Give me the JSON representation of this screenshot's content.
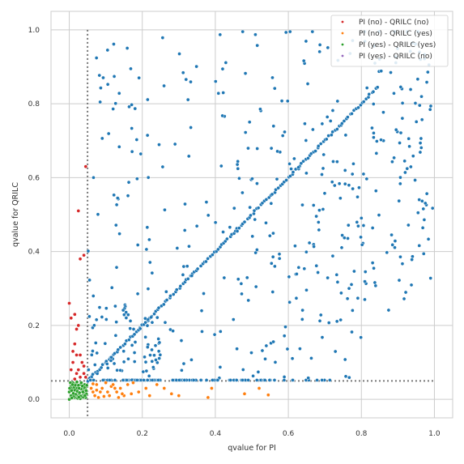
{
  "chart_data": {
    "type": "scatter",
    "xlabel": "qvalue for PI",
    "ylabel": "qvalue for QRILC",
    "xlim": [
      -0.05,
      1.05
    ],
    "ylim": [
      -0.05,
      1.05
    ],
    "grid": true,
    "legend_position": "top-right",
    "x_ticks": [
      "0.0",
      "0.2",
      "0.4",
      "0.6",
      "0.8",
      "1.0"
    ],
    "y_ticks": [
      "0.0",
      "0.2",
      "0.4",
      "0.6",
      "0.8",
      "1.0"
    ],
    "threshold": 0.05,
    "series": [
      {
        "name": "PI (no)  - QRILC (no)",
        "color": "#d62728",
        "points": [
          [
            0.0,
            0.26
          ],
          [
            0.005,
            0.22
          ],
          [
            0.015,
            0.23
          ],
          [
            0.02,
            0.19
          ],
          [
            0.025,
            0.2
          ],
          [
            0.03,
            0.38
          ],
          [
            0.025,
            0.51
          ],
          [
            0.045,
            0.63
          ],
          [
            0.04,
            0.39
          ],
          [
            0.015,
            0.15
          ],
          [
            0.02,
            0.12
          ],
          [
            0.03,
            0.12
          ],
          [
            0.01,
            0.1
          ],
          [
            0.035,
            0.1
          ],
          [
            0.025,
            0.08
          ],
          [
            0.04,
            0.07
          ],
          [
            0.02,
            0.07
          ],
          [
            0.005,
            0.08
          ],
          [
            0.03,
            0.06
          ],
          [
            0.045,
            0.06
          ],
          [
            0.015,
            0.055
          ],
          [
            0.04,
            0.09
          ],
          [
            0.01,
            0.13
          ]
        ]
      },
      {
        "name": "PI (no)  - QRILC (yes)",
        "color": "#ff7f0e",
        "points": [
          [
            0.06,
            0.03
          ],
          [
            0.065,
            0.02
          ],
          [
            0.07,
            0.01
          ],
          [
            0.075,
            0.04
          ],
          [
            0.08,
            0.005
          ],
          [
            0.09,
            0.03
          ],
          [
            0.1,
            0.045
          ],
          [
            0.105,
            0.02
          ],
          [
            0.11,
            0.01
          ],
          [
            0.115,
            0.035
          ],
          [
            0.12,
            0.04
          ],
          [
            0.13,
            0.02
          ],
          [
            0.135,
            0.005
          ],
          [
            0.14,
            0.03
          ],
          [
            0.15,
            0.01
          ],
          [
            0.16,
            0.04
          ],
          [
            0.17,
            0.015
          ],
          [
            0.175,
            0.045
          ],
          [
            0.19,
            0.02
          ],
          [
            0.21,
            0.03
          ],
          [
            0.22,
            0.01
          ],
          [
            0.24,
            0.04
          ],
          [
            0.26,
            0.03
          ],
          [
            0.28,
            0.015
          ],
          [
            0.3,
            0.01
          ],
          [
            0.38,
            0.005
          ],
          [
            0.39,
            0.03
          ],
          [
            0.48,
            0.015
          ],
          [
            0.52,
            0.03
          ],
          [
            0.545,
            0.012
          ],
          [
            0.085,
            0.02
          ],
          [
            0.095,
            0.008
          ],
          [
            0.125,
            0.03
          ],
          [
            0.145,
            0.015
          ],
          [
            0.065,
            0.042
          ],
          [
            0.075,
            0.025
          ]
        ]
      },
      {
        "name": "PI (yes) - QRILC (yes)",
        "color": "#2ca02c",
        "points": [
          [
            0.0,
            0.0
          ],
          [
            0.005,
            0.01
          ],
          [
            0.01,
            0.02
          ],
          [
            0.015,
            0.005
          ],
          [
            0.02,
            0.03
          ],
          [
            0.025,
            0.015
          ],
          [
            0.03,
            0.04
          ],
          [
            0.035,
            0.01
          ],
          [
            0.04,
            0.025
          ],
          [
            0.045,
            0.005
          ],
          [
            0.005,
            0.035
          ],
          [
            0.01,
            0.045
          ],
          [
            0.015,
            0.025
          ],
          [
            0.02,
            0.012
          ],
          [
            0.025,
            0.038
          ],
          [
            0.03,
            0.002
          ],
          [
            0.035,
            0.028
          ],
          [
            0.04,
            0.018
          ],
          [
            0.045,
            0.033
          ],
          [
            0.0,
            0.02
          ],
          [
            0.008,
            0.03
          ],
          [
            0.012,
            0.008
          ],
          [
            0.018,
            0.042
          ],
          [
            0.022,
            0.022
          ],
          [
            0.028,
            0.018
          ],
          [
            0.032,
            0.028
          ],
          [
            0.038,
            0.006
          ],
          [
            0.042,
            0.04
          ],
          [
            0.047,
            0.015
          ],
          [
            0.003,
            0.045
          ],
          [
            0.007,
            0.004
          ],
          [
            0.013,
            0.033
          ],
          [
            0.017,
            0.014
          ],
          [
            0.023,
            0.003
          ],
          [
            0.027,
            0.03
          ],
          [
            0.033,
            0.045
          ],
          [
            0.037,
            0.02
          ],
          [
            0.043,
            0.01
          ],
          [
            0.048,
            0.038
          ],
          [
            0.001,
            0.03
          ],
          [
            0.011,
            0.016
          ],
          [
            0.021,
            0.047
          ],
          [
            0.031,
            0.009
          ],
          [
            0.041,
            0.032
          ],
          [
            0.006,
            0.024
          ],
          [
            0.016,
            0.038
          ],
          [
            0.026,
            0.006
          ],
          [
            0.036,
            0.036
          ],
          [
            0.046,
            0.024
          ],
          [
            0.009,
            0.04
          ]
        ]
      },
      {
        "name": "PI (yes) - QRILC (no)",
        "color": "#9467bd",
        "points": []
      }
    ]
  }
}
